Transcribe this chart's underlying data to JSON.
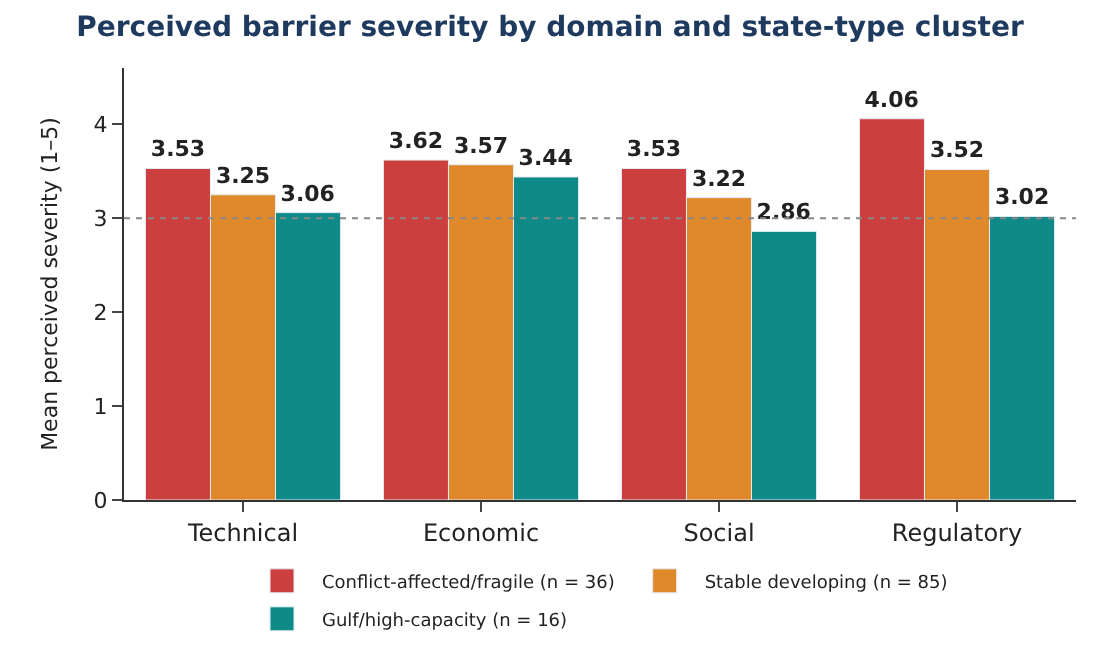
{
  "chart_data": {
    "type": "bar",
    "title": "Perceived barrier severity by domain and state-type cluster",
    "ylabel": "Mean perceived severity (1–5)",
    "categories": [
      "Technical",
      "Economic",
      "Social",
      "Regulatory"
    ],
    "series": [
      {
        "name": "Conflict-affected/fragile (n = 36)",
        "color": "#cc3f3f",
        "values": [
          3.53,
          3.62,
          3.53,
          4.06
        ]
      },
      {
        "name": "Stable developing (n = 85)",
        "color": "#e0892a",
        "values": [
          3.25,
          3.57,
          3.22,
          3.52
        ]
      },
      {
        "name": "Gulf/high-capacity (n = 16)",
        "color": "#0e8a89",
        "values": [
          3.06,
          3.44,
          2.86,
          3.02
        ]
      }
    ],
    "ylim": [
      0,
      4.6
    ],
    "yticks": [
      0,
      1,
      2,
      3,
      4
    ],
    "ref_lines": [
      {
        "axis": "y",
        "value": 3,
        "color": "#888888",
        "line_style": "dotted"
      }
    ],
    "data_labels": true,
    "legend": "bottom"
  }
}
